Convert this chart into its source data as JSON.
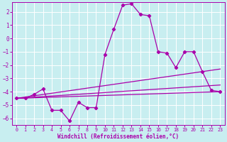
{
  "title": "",
  "xlabel": "Windchill (Refroidissement éolien,°C)",
  "ylabel": "",
  "bg_color": "#c8eef0",
  "line_color": "#aa00aa",
  "grid_color": "#ffffff",
  "xlim": [
    -0.5,
    23.5
  ],
  "ylim": [
    -6.5,
    2.7
  ],
  "xticks": [
    0,
    1,
    2,
    3,
    4,
    5,
    6,
    7,
    8,
    9,
    10,
    11,
    12,
    13,
    14,
    15,
    16,
    17,
    18,
    19,
    20,
    21,
    22,
    23
  ],
  "yticks": [
    -6,
    -5,
    -4,
    -3,
    -2,
    -1,
    0,
    1,
    2
  ],
  "line1_x": [
    0,
    1,
    2,
    3,
    4,
    5,
    6,
    7,
    8,
    9,
    10,
    11,
    12,
    13,
    14,
    15,
    16,
    17,
    18,
    19,
    20,
    21,
    22,
    23
  ],
  "line1_y": [
    -4.5,
    -4.5,
    -4.2,
    -3.8,
    -5.4,
    -5.4,
    -6.2,
    -4.8,
    -5.2,
    -5.2,
    -1.2,
    0.7,
    2.5,
    2.6,
    1.8,
    1.7,
    -1.0,
    -1.1,
    -2.2,
    -1.0,
    -1.0,
    -2.5,
    -3.9,
    -4.0
  ],
  "line2_x": [
    0,
    23
  ],
  "line2_y": [
    -4.5,
    -4.0
  ],
  "line3_x": [
    0,
    23
  ],
  "line3_y": [
    -4.5,
    -2.3
  ],
  "line4_x": [
    0,
    23
  ],
  "line4_y": [
    -4.5,
    -3.5
  ]
}
